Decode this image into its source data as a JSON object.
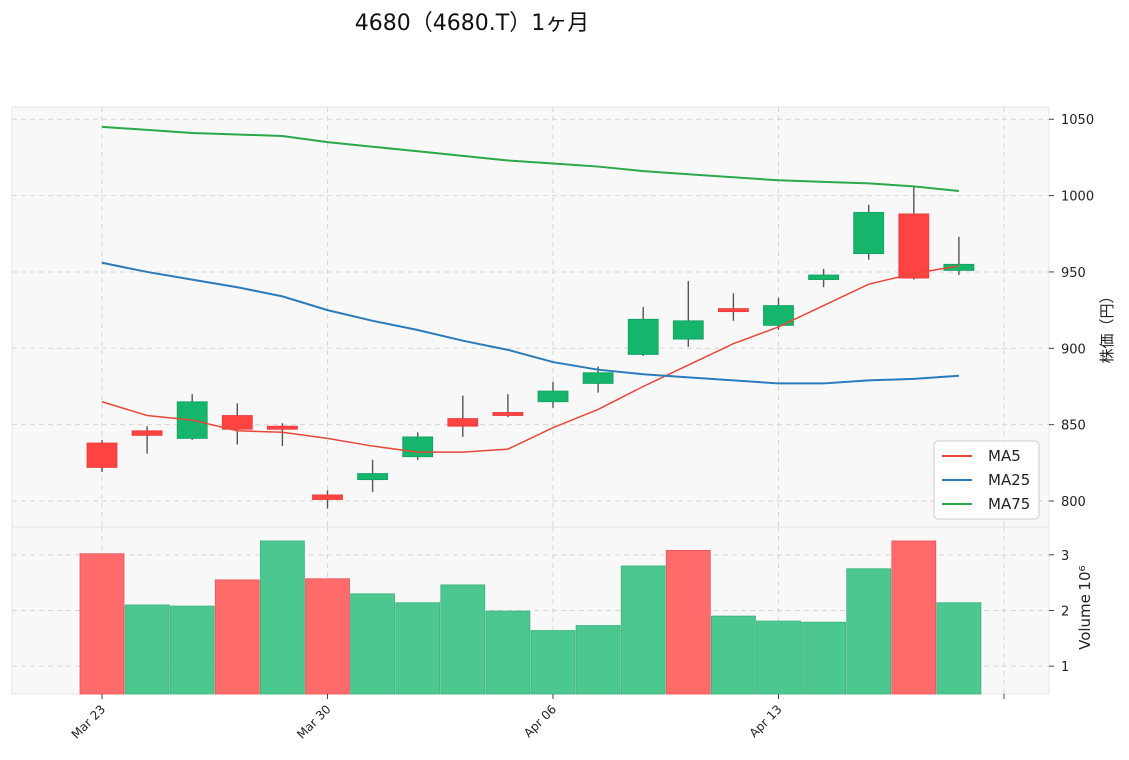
{
  "chart_data": {
    "type": "candlestick",
    "title": "4680（4680.T）1ヶ月",
    "dates": [
      "Mar 23",
      "Mar 24",
      "Mar 25",
      "Mar 26",
      "Mar 27",
      "Mar 30",
      "Mar 31",
      "Apr 01",
      "Apr 02",
      "Apr 03",
      "Apr 06",
      "Apr 07",
      "Apr 08",
      "Apr 09",
      "Apr 10",
      "Apr 13",
      "Apr 14",
      "Apr 15",
      "Apr 16",
      "Apr 17"
    ],
    "x_ticks": [
      {
        "index": 0,
        "label": "Mar 23"
      },
      {
        "index": 5,
        "label": "Mar 30"
      },
      {
        "index": 10,
        "label": "Apr 06"
      },
      {
        "index": 15,
        "label": "Apr 13"
      },
      {
        "index": 20,
        "label": ""
      }
    ],
    "ohlc": [
      {
        "open": 838,
        "high": 840,
        "low": 819,
        "close": 822
      },
      {
        "open": 846,
        "high": 849,
        "low": 831,
        "close": 843
      },
      {
        "open": 841,
        "high": 870,
        "low": 840,
        "close": 865
      },
      {
        "open": 856,
        "high": 864,
        "low": 837,
        "close": 847
      },
      {
        "open": 849,
        "high": 851,
        "low": 836,
        "close": 847
      },
      {
        "open": 804,
        "high": 807,
        "low": 795,
        "close": 801
      },
      {
        "open": 814,
        "high": 827,
        "low": 806,
        "close": 818
      },
      {
        "open": 829,
        "high": 845,
        "low": 827,
        "close": 842
      },
      {
        "open": 854,
        "high": 869,
        "low": 842,
        "close": 849
      },
      {
        "open": 858,
        "high": 870,
        "low": 855,
        "close": 856
      },
      {
        "open": 865,
        "high": 878,
        "low": 861,
        "close": 872
      },
      {
        "open": 877,
        "high": 888,
        "low": 871,
        "close": 884
      },
      {
        "open": 896,
        "high": 927,
        "low": 895,
        "close": 919
      },
      {
        "open": 906,
        "high": 944,
        "low": 901,
        "close": 918
      },
      {
        "open": 926,
        "high": 936,
        "low": 918,
        "close": 924
      },
      {
        "open": 915,
        "high": 933,
        "low": 912,
        "close": 928
      },
      {
        "open": 945,
        "high": 952,
        "low": 940,
        "close": 948
      },
      {
        "open": 962,
        "high": 994,
        "low": 958,
        "close": 989
      },
      {
        "open": 988,
        "high": 1006,
        "low": 945,
        "close": 946
      },
      {
        "open": 951,
        "high": 973,
        "low": 948,
        "close": 955
      }
    ],
    "ma": [
      {
        "name": "MA5",
        "color": "#e8473b",
        "values": [
          865,
          856,
          853,
          846,
          845,
          841,
          836,
          832,
          832,
          834,
          848,
          860,
          875,
          889,
          903,
          914,
          928,
          942,
          949,
          954
        ]
      },
      {
        "name": "MA25",
        "color": "#2b7bba",
        "values": [
          956,
          950,
          945,
          940,
          934,
          925,
          918,
          912,
          905,
          899,
          891,
          886,
          883,
          881,
          879,
          877,
          877,
          879,
          880,
          882
        ]
      },
      {
        "name": "MA75",
        "color": "#2aa84a",
        "values": [
          1045,
          1043,
          1041,
          1040,
          1039,
          1035,
          1032,
          1029,
          1026,
          1023,
          1021,
          1019,
          1016,
          1014,
          1012,
          1010,
          1009,
          1008,
          1006,
          1003
        ]
      }
    ],
    "volume": {
      "values": [
        3.02,
        2.1,
        2.08,
        2.55,
        3.25,
        2.57,
        2.3,
        2.14,
        2.46,
        1.99,
        1.64,
        1.73,
        2.8,
        3.08,
        1.9,
        1.81,
        1.79,
        2.75,
        3.25,
        2.14
      ],
      "up_down": [
        "down",
        "up",
        "up",
        "down",
        "up",
        "down",
        "up",
        "up",
        "up",
        "up",
        "up",
        "up",
        "up",
        "down",
        "up",
        "up",
        "up",
        "up",
        "down",
        "up"
      ],
      "ylabel": "Volume",
      "exponent": "10⁶",
      "yticks": [
        1,
        2,
        3
      ],
      "ylim": [
        0.5,
        3.5
      ]
    },
    "price_ylabel": "株価（円）",
    "price_yticks": [
      800,
      850,
      900,
      950,
      1000,
      1050
    ],
    "price_ylim": [
      783,
      1058
    ],
    "colors": {
      "up": "#16b56c",
      "down": "#ff4242",
      "up_volume": "#4bc78f",
      "down_volume": "#ff6b6b",
      "wick": "#555555",
      "grid": "#d6d6d6",
      "panel_bg": "#f8f8f8"
    },
    "legend_position": "right"
  }
}
